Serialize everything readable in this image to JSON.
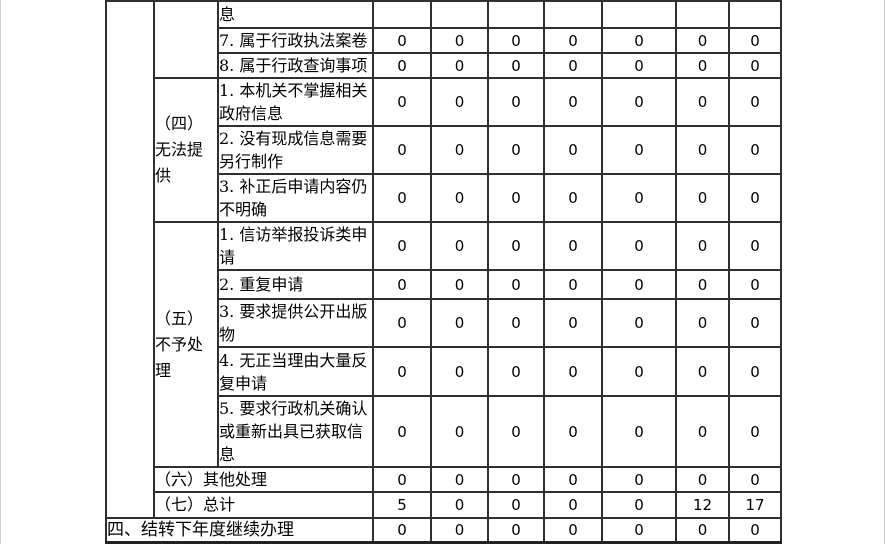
{
  "document": {
    "type": "government-information-disclosure-annual-report-table",
    "border_color": "#2f2f2f",
    "accent_text_color": "#141a22",
    "rows": [
      {
        "label": "息",
        "values": [
          "",
          "",
          "",
          "",
          "",
          "",
          ""
        ]
      },
      {
        "label": "7. 属于行政执法案卷",
        "values": [
          "0",
          "0",
          "0",
          "0",
          "0",
          "0",
          "0"
        ]
      },
      {
        "label": "8. 属于行政查询事项",
        "values": [
          "0",
          "0",
          "0",
          "0",
          "0",
          "0",
          "0"
        ]
      },
      {
        "group": "（四）无法提供",
        "label": "1. 本机关不掌握相关政府信息",
        "values": [
          "0",
          "0",
          "0",
          "0",
          "0",
          "0",
          "0"
        ]
      },
      {
        "label": "2. 没有现成信息需要另行制作",
        "values": [
          "0",
          "0",
          "0",
          "0",
          "0",
          "0",
          "0"
        ]
      },
      {
        "label": "3. 补正后申请内容仍不明确",
        "values": [
          "0",
          "0",
          "0",
          "0",
          "0",
          "0",
          "0"
        ]
      },
      {
        "group": "（五）不予处理",
        "label": "1. 信访举报投诉类申请",
        "values": [
          "0",
          "0",
          "0",
          "0",
          "0",
          "0",
          "0"
        ]
      },
      {
        "label": "2. 重复申请",
        "values": [
          "0",
          "0",
          "0",
          "0",
          "0",
          "0",
          "0"
        ]
      },
      {
        "label": "3. 要求提供公开出版物",
        "values": [
          "0",
          "0",
          "0",
          "0",
          "0",
          "0",
          "0"
        ]
      },
      {
        "label": "4. 无正当理由大量反复申请",
        "values": [
          "0",
          "0",
          "0",
          "0",
          "0",
          "0",
          "0"
        ]
      },
      {
        "label": "5. 要求行政机关确认或重新出具已获取信息",
        "values": [
          "0",
          "0",
          "0",
          "0",
          "0",
          "0",
          "0"
        ]
      },
      {
        "label": "（六）其他处理",
        "values": [
          "0",
          "0",
          "0",
          "0",
          "0",
          "0",
          "0"
        ]
      },
      {
        "label": "（七）总计",
        "values": [
          "5",
          "0",
          "0",
          "0",
          "0",
          "12",
          "17"
        ]
      },
      {
        "label": "四、结转下年度继续办理",
        "values": [
          "0",
          "0",
          "0",
          "0",
          "0",
          "0",
          "0"
        ]
      }
    ]
  }
}
